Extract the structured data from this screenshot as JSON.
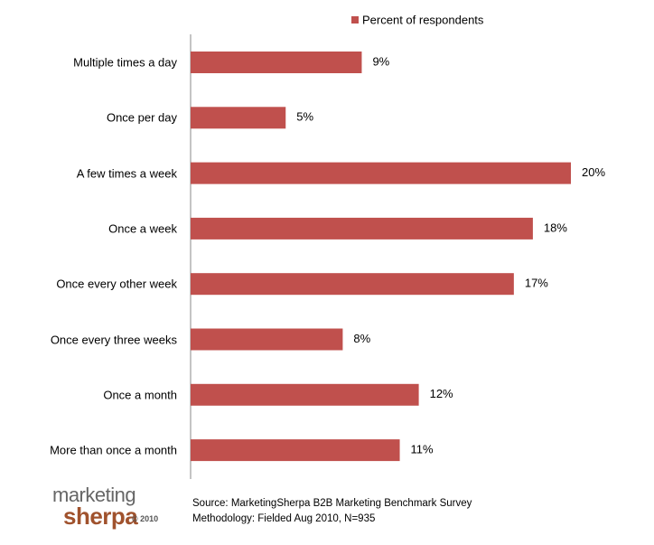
{
  "chart_data": {
    "type": "bar",
    "orientation": "horizontal",
    "categories": [
      "Multiple times a day",
      "Once per day",
      "A few times a week",
      "Once a week",
      "Once every other week",
      "Once every three weeks",
      "Once a month",
      "More than once a month"
    ],
    "series": [
      {
        "name": "Percent of respondents",
        "color": "#c0504d",
        "values": [
          9,
          5,
          20,
          18,
          17,
          8,
          12,
          11
        ],
        "value_labels": [
          "9%",
          "5%",
          "20%",
          "18%",
          "17%",
          "8%",
          "12%",
          "11%"
        ]
      }
    ],
    "legend": "top",
    "source": [
      "Source: MarketingSherpa B2B Marketing Benchmark Survey",
      "Methodology: Fielded Aug 2010, N=935"
    ],
    "logo": [
      "marketing",
      "sherpa",
      "© 2010"
    ]
  }
}
